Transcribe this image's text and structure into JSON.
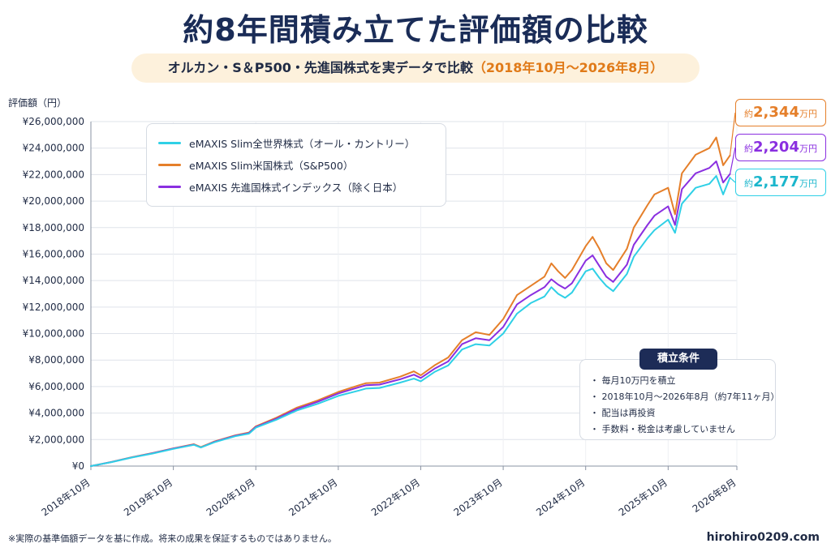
{
  "title": "約8年間積み立てた評価額の比較",
  "subtitle": {
    "main": "オルカン・S＆P500・先進国株式を実データで比較",
    "period": "（2018年10月～2026年8月）"
  },
  "colors": {
    "allcountry": "#2fd0e6",
    "sp500": "#e57f2a",
    "developed": "#8a2fe0",
    "navy": "#1d2c57"
  },
  "conditions": {
    "title": "積立条件",
    "items": [
      "・ 毎月10万円を積立",
      "・ 2018年10月～2026年8月（約7年11ヶ月）",
      "・ 配当は再投資",
      "・ 手数料・税金は考慮していません"
    ]
  },
  "callouts": {
    "sp500": {
      "prefix": "約",
      "value": "2,344",
      "unit": "万円"
    },
    "developed": {
      "prefix": "約",
      "value": "2,204",
      "unit": "万円"
    },
    "allcountry": {
      "prefix": "約",
      "value": "2,177",
      "unit": "万円"
    }
  },
  "footnote": "※実際の基準価額データを基に作成。将来の成果を保証するものではありません。",
  "website": "hirohiro0209.com",
  "chart_data": {
    "type": "line",
    "ylabel": "評価額（円）",
    "ylim": [
      0,
      26000000
    ],
    "yticks": [
      0,
      2000000,
      4000000,
      6000000,
      8000000,
      10000000,
      12000000,
      14000000,
      16000000,
      18000000,
      20000000,
      22000000,
      24000000,
      26000000
    ],
    "ytick_labels": [
      "¥0",
      "¥2,000,000",
      "¥4,000,000",
      "¥6,000,000",
      "¥8,000,000",
      "¥10,000,000",
      "¥12,000,000",
      "¥14,000,000",
      "¥16,000,000",
      "¥18,000,000",
      "¥20,000,000",
      "¥22,000,000",
      "¥24,000,000",
      "¥26,000,000"
    ],
    "xtick_labels": [
      "2018年10月",
      "2019年10月",
      "2020年10月",
      "2021年10月",
      "2022年10月",
      "2023年10月",
      "2024年10月",
      "2025年10月",
      "2026年8月"
    ],
    "xtick_months": [
      0,
      12,
      24,
      36,
      48,
      60,
      72,
      84,
      94
    ],
    "grid": true,
    "legend_position": "top-left",
    "series": [
      {
        "name": "eMAXIS Slim全世界株式（オール・カントリー）",
        "color_key": "allcountry",
        "points": [
          [
            0,
            0
          ],
          [
            3,
            300000
          ],
          [
            6,
            650000
          ],
          [
            9,
            950000
          ],
          [
            12,
            1300000
          ],
          [
            15,
            1600000
          ],
          [
            16,
            1400000
          ],
          [
            18,
            1800000
          ],
          [
            21,
            2250000
          ],
          [
            23,
            2450000
          ],
          [
            24,
            2900000
          ],
          [
            27,
            3500000
          ],
          [
            30,
            4200000
          ],
          [
            33,
            4700000
          ],
          [
            36,
            5300000
          ],
          [
            39,
            5700000
          ],
          [
            40,
            5850000
          ],
          [
            42,
            5900000
          ],
          [
            45,
            6300000
          ],
          [
            47,
            6600000
          ],
          [
            48,
            6400000
          ],
          [
            50,
            7100000
          ],
          [
            52,
            7600000
          ],
          [
            54,
            8800000
          ],
          [
            56,
            9200000
          ],
          [
            58,
            9100000
          ],
          [
            60,
            10000000
          ],
          [
            62,
            11500000
          ],
          [
            64,
            12300000
          ],
          [
            66,
            12800000
          ],
          [
            67,
            13500000
          ],
          [
            68,
            13000000
          ],
          [
            69,
            12700000
          ],
          [
            70,
            13100000
          ],
          [
            72,
            14700000
          ],
          [
            73,
            14900000
          ],
          [
            74,
            14200000
          ],
          [
            75,
            13600000
          ],
          [
            76,
            13200000
          ],
          [
            78,
            14500000
          ],
          [
            79,
            15800000
          ],
          [
            81,
            17200000
          ],
          [
            82,
            17800000
          ],
          [
            84,
            18600000
          ],
          [
            85,
            17600000
          ],
          [
            86,
            19800000
          ],
          [
            88,
            21000000
          ],
          [
            90,
            21300000
          ],
          [
            91,
            21900000
          ],
          [
            92,
            20500000
          ],
          [
            93,
            21770000
          ]
        ]
      },
      {
        "name": "eMAXIS Slim米国株式（S&P500）",
        "color_key": "sp500",
        "points": [
          [
            0,
            0
          ],
          [
            3,
            310000
          ],
          [
            6,
            670000
          ],
          [
            9,
            990000
          ],
          [
            12,
            1340000
          ],
          [
            15,
            1650000
          ],
          [
            16,
            1430000
          ],
          [
            18,
            1860000
          ],
          [
            21,
            2320000
          ],
          [
            23,
            2530000
          ],
          [
            24,
            3000000
          ],
          [
            27,
            3650000
          ],
          [
            30,
            4420000
          ],
          [
            33,
            4950000
          ],
          [
            36,
            5600000
          ],
          [
            39,
            6100000
          ],
          [
            40,
            6250000
          ],
          [
            42,
            6300000
          ],
          [
            45,
            6750000
          ],
          [
            47,
            7150000
          ],
          [
            48,
            6850000
          ],
          [
            50,
            7600000
          ],
          [
            52,
            8200000
          ],
          [
            54,
            9500000
          ],
          [
            56,
            10100000
          ],
          [
            58,
            9900000
          ],
          [
            60,
            11100000
          ],
          [
            62,
            12900000
          ],
          [
            64,
            13600000
          ],
          [
            66,
            14300000
          ],
          [
            67,
            15300000
          ],
          [
            68,
            14700000
          ],
          [
            69,
            14200000
          ],
          [
            70,
            14800000
          ],
          [
            72,
            16600000
          ],
          [
            73,
            17300000
          ],
          [
            74,
            16400000
          ],
          [
            75,
            15300000
          ],
          [
            76,
            14800000
          ],
          [
            78,
            16400000
          ],
          [
            79,
            18000000
          ],
          [
            81,
            19700000
          ],
          [
            82,
            20500000
          ],
          [
            84,
            21000000
          ],
          [
            85,
            19000000
          ],
          [
            86,
            22100000
          ],
          [
            88,
            23500000
          ],
          [
            90,
            24000000
          ],
          [
            91,
            24800000
          ],
          [
            92,
            22700000
          ],
          [
            93,
            23440000
          ]
        ]
      },
      {
        "name": "eMAXIS 先進国株式インデックス（除く日本）",
        "color_key": "developed",
        "points": [
          [
            0,
            0
          ],
          [
            3,
            305000
          ],
          [
            6,
            660000
          ],
          [
            9,
            970000
          ],
          [
            12,
            1320000
          ],
          [
            15,
            1620000
          ],
          [
            16,
            1410000
          ],
          [
            18,
            1830000
          ],
          [
            21,
            2290000
          ],
          [
            23,
            2490000
          ],
          [
            24,
            2950000
          ],
          [
            27,
            3580000
          ],
          [
            30,
            4320000
          ],
          [
            33,
            4850000
          ],
          [
            36,
            5480000
          ],
          [
            39,
            5950000
          ],
          [
            40,
            6100000
          ],
          [
            42,
            6150000
          ],
          [
            45,
            6550000
          ],
          [
            47,
            6900000
          ],
          [
            48,
            6650000
          ],
          [
            50,
            7350000
          ],
          [
            52,
            7900000
          ],
          [
            54,
            9200000
          ],
          [
            56,
            9650000
          ],
          [
            58,
            9500000
          ],
          [
            60,
            10500000
          ],
          [
            62,
            12200000
          ],
          [
            64,
            12900000
          ],
          [
            66,
            13500000
          ],
          [
            67,
            14100000
          ],
          [
            68,
            13700000
          ],
          [
            69,
            13400000
          ],
          [
            70,
            13800000
          ],
          [
            72,
            15500000
          ],
          [
            73,
            15900000
          ],
          [
            74,
            15100000
          ],
          [
            75,
            14300000
          ],
          [
            76,
            13900000
          ],
          [
            78,
            15200000
          ],
          [
            79,
            16700000
          ],
          [
            81,
            18200000
          ],
          [
            82,
            18900000
          ],
          [
            84,
            19600000
          ],
          [
            85,
            18200000
          ],
          [
            86,
            20900000
          ],
          [
            88,
            22100000
          ],
          [
            90,
            22500000
          ],
          [
            91,
            23000000
          ],
          [
            92,
            21400000
          ],
          [
            93,
            22040000
          ]
        ]
      }
    ]
  }
}
